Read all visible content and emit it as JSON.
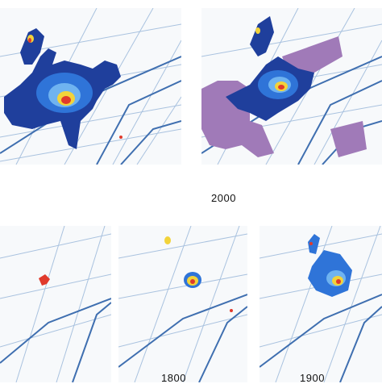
{
  "labels": {
    "year_2000": "2000",
    "year_1800": "1800",
    "year_1900": "1900"
  },
  "colors": {
    "water": "#3f6fb0",
    "canal_light": "#a9c2df",
    "urban_dense": "#1f3f9c",
    "urban_mid": "#2f74d8",
    "urban_light": "#6fb3f0",
    "core_yellow": "#f2d33a",
    "core_red": "#e03a2c",
    "greenhouse_purple": "#a07ab8",
    "background": "#f7f9fb"
  }
}
